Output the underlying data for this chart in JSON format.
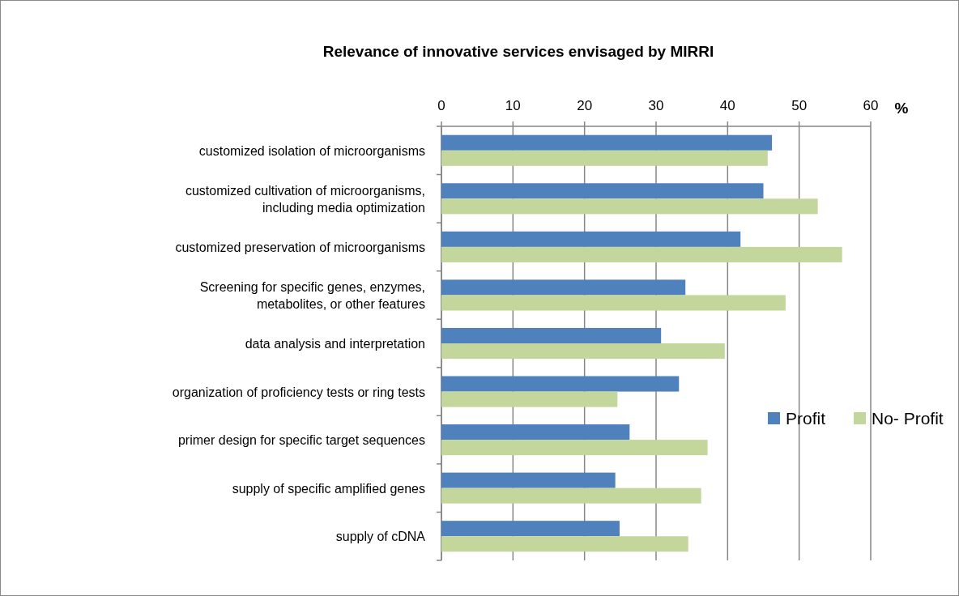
{
  "chart_data": {
    "type": "bar",
    "orientation": "horizontal",
    "title": "Relevance of innovative services envisaged by MIRRI",
    "xlabel": "%",
    "categories": [
      "customized isolation of microorganisms",
      "customized cultivation of microorganisms, including media optimization",
      "customized preservation of microorganisms",
      "Screening for specific genes, enzymes, metabolites, or other features",
      "data analysis and interpretation",
      "organization of proficiency tests or ring tests",
      "primer design for specific target sequences",
      "supply of specific amplified genes",
      "supply of cDNA"
    ],
    "series": [
      {
        "name": "Profit",
        "color": "#4f81bd",
        "values": [
          46.2,
          45.0,
          41.8,
          34.1,
          30.7,
          33.2,
          26.3,
          24.3,
          24.9
        ]
      },
      {
        "name": "No- Profit",
        "color": "#c3d69b",
        "values": [
          45.6,
          52.6,
          56.0,
          48.1,
          39.6,
          24.6,
          37.2,
          36.3,
          34.5
        ]
      }
    ],
    "xlim": [
      0,
      60
    ],
    "xticks": [
      0,
      10,
      20,
      30,
      40,
      50,
      60
    ],
    "grid": "x",
    "legend": "right"
  }
}
